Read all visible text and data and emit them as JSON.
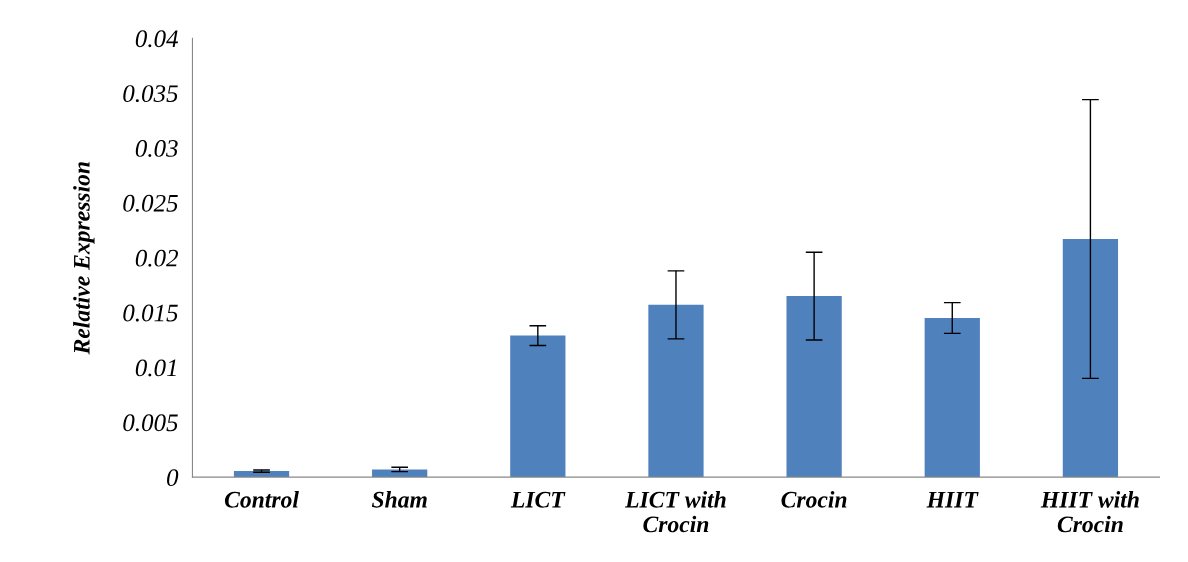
{
  "chart_data": {
    "type": "bar",
    "ylabel": "Relative Expression",
    "categories": [
      "Control",
      "Sham",
      "LICT",
      "LICT with\nCrocin",
      "Crocin",
      "HIIT",
      "HIIT with\nCrocin"
    ],
    "values": [
      0.00055,
      0.0007,
      0.0129,
      0.0157,
      0.0165,
      0.0145,
      0.0217
    ],
    "errors": [
      0.0001,
      0.0002,
      0.0009,
      0.0031,
      0.004,
      0.0014,
      0.0127
    ],
    "color": "#4f81bd",
    "ylim": [
      0,
      0.04
    ],
    "yticks": [
      {
        "value": 0,
        "label": "0"
      },
      0.005,
      0.01,
      0.015,
      0.02,
      0.025,
      0.03,
      0.035,
      0.04
    ],
    "grid": false
  }
}
